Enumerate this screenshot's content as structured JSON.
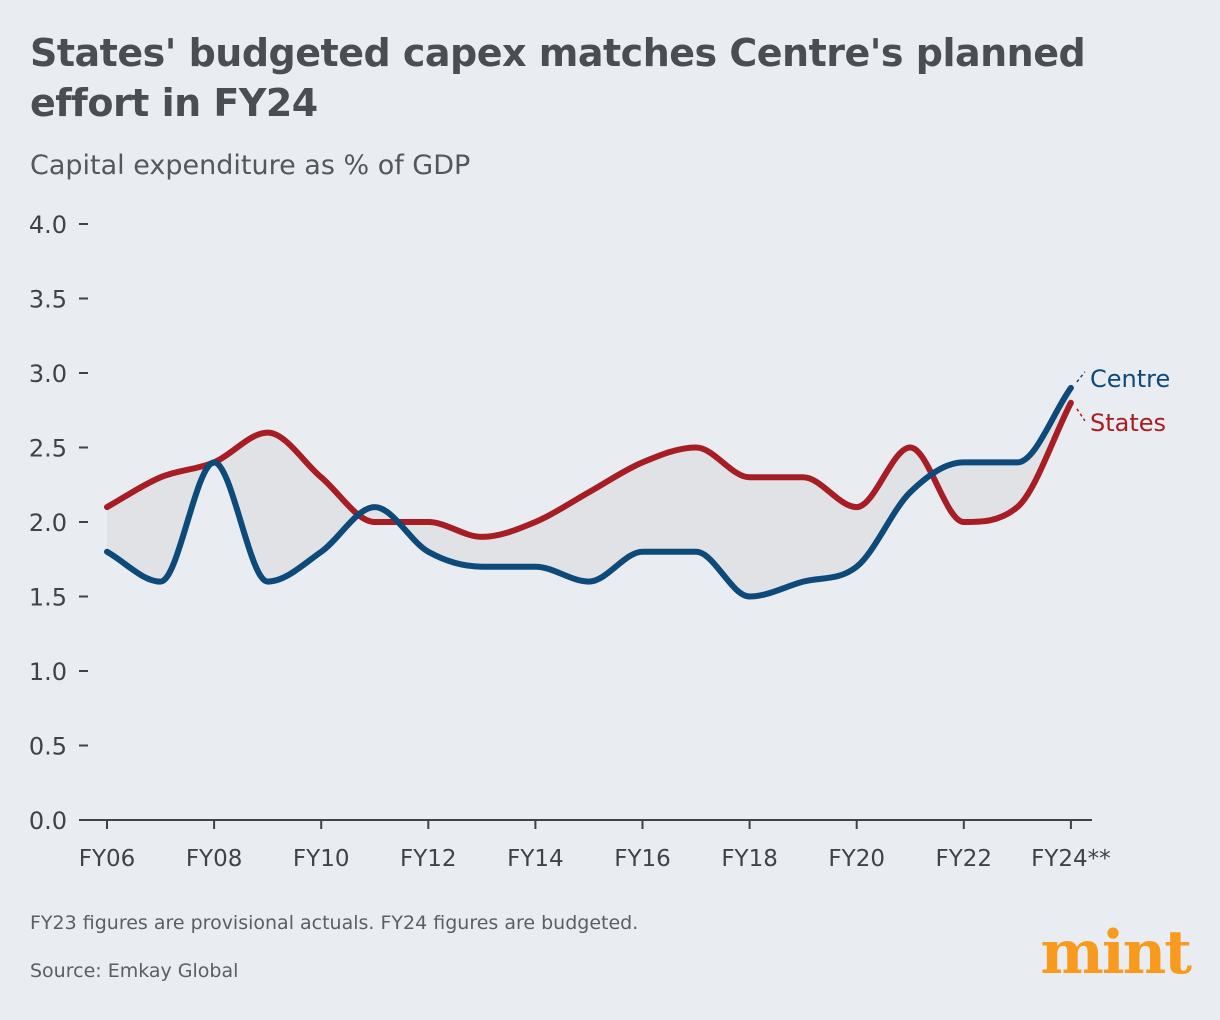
{
  "chart_data": {
    "type": "line",
    "title": "States' budgeted capex matches Centre's planned effort in FY24",
    "subtitle": "Capital expenditure as % of GDP",
    "x": [
      "FY06",
      "FY07",
      "FY08",
      "FY09",
      "FY10",
      "FY11",
      "FY12",
      "FY13",
      "FY14",
      "FY15",
      "FY16",
      "FY17",
      "FY18",
      "FY19",
      "FY20",
      "FY21",
      "FY22",
      "FY23",
      "FY24"
    ],
    "x_tick_labels": [
      "FY06",
      "FY08",
      "FY10",
      "FY12",
      "FY14",
      "FY16",
      "FY18",
      "FY20",
      "FY22",
      "FY24**"
    ],
    "y_tick_labels": [
      "0.0",
      "0.5",
      "1.0",
      "1.5",
      "2.0",
      "2.5",
      "3.0",
      "3.5",
      "4.0"
    ],
    "ylim": [
      0,
      4
    ],
    "grid": false,
    "legend": "direct labels at right end",
    "series": [
      {
        "name": "Centre",
        "color": "#0d4a7a",
        "values": [
          1.8,
          1.6,
          2.4,
          1.6,
          1.8,
          2.1,
          1.8,
          1.7,
          1.7,
          1.6,
          1.8,
          1.8,
          1.5,
          1.6,
          1.7,
          2.2,
          2.4,
          2.4,
          2.9
        ]
      },
      {
        "name": "States",
        "color": "#a61e24",
        "values": [
          2.1,
          2.3,
          2.4,
          2.6,
          2.3,
          2.0,
          2.0,
          1.9,
          2.0,
          2.2,
          2.4,
          2.5,
          2.3,
          2.3,
          2.1,
          2.5,
          2.0,
          2.1,
          2.8
        ]
      }
    ],
    "fill_between_color": "#e1e2e6"
  },
  "footnote": "FY23 figures are provisional actuals. FY24 figures are budgeted.",
  "source": "Source: Emkay Global",
  "logo": "mint"
}
